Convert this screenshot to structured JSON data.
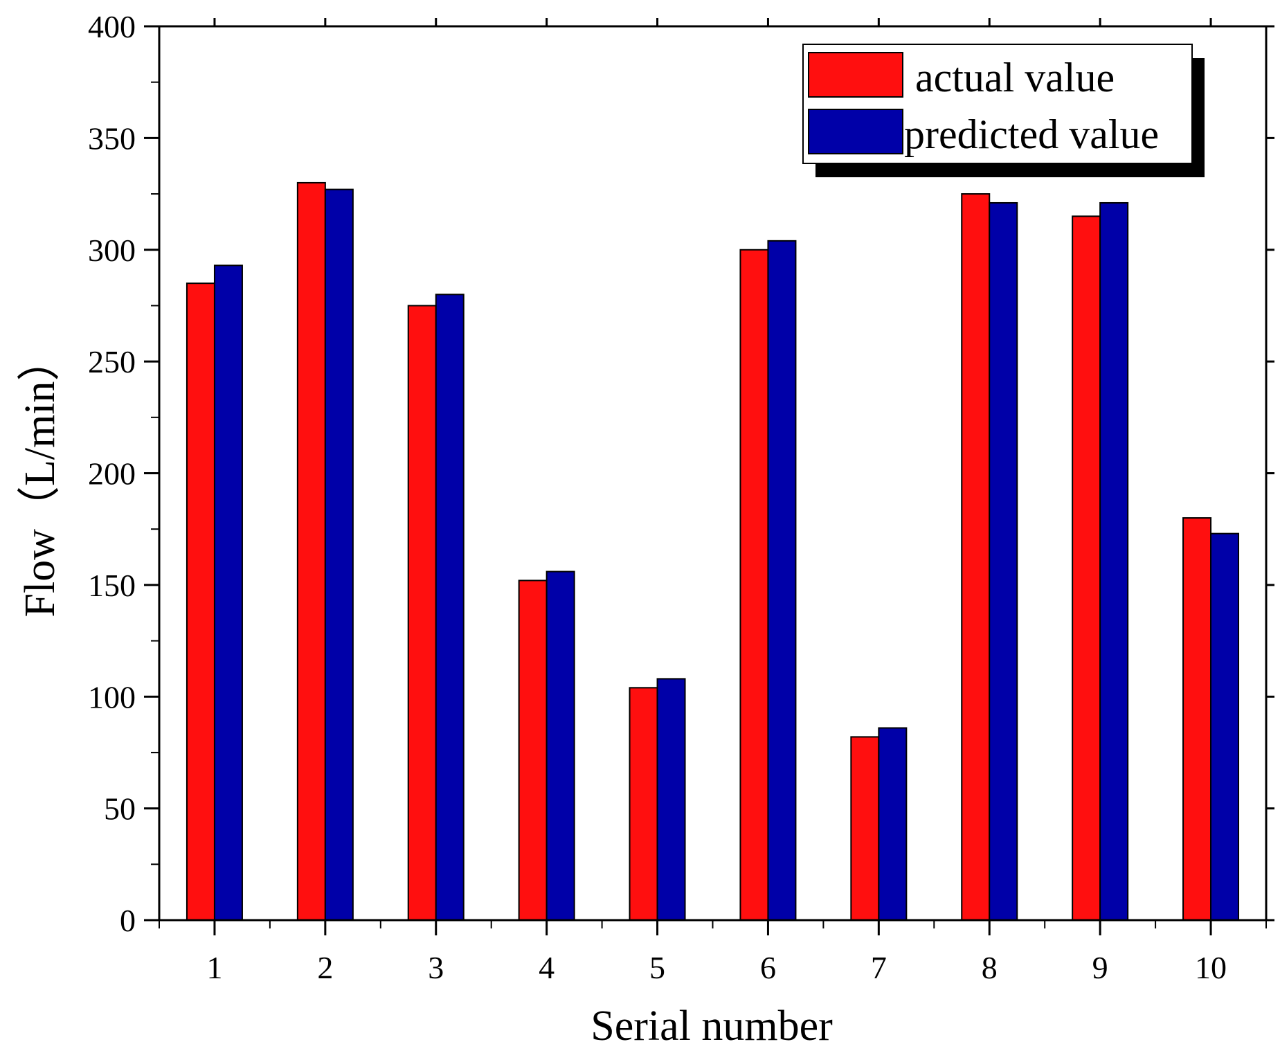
{
  "colors": {
    "actual": "#ff0f0f",
    "predicted": "#0000a8",
    "axis": "#000000"
  },
  "chart_data": {
    "type": "bar",
    "categories": [
      "1",
      "2",
      "3",
      "4",
      "5",
      "6",
      "7",
      "8",
      "9",
      "10"
    ],
    "series": [
      {
        "name": "actual value",
        "values": [
          285,
          330,
          275,
          152,
          104,
          300,
          82,
          325,
          315,
          180
        ]
      },
      {
        "name": "predicted value",
        "values": [
          293,
          327,
          280,
          156,
          108,
          304,
          86,
          321,
          321,
          173
        ]
      }
    ],
    "title": "",
    "xlabel": "Serial number",
    "ylabel": "Flow（L/min）",
    "ylim": [
      0,
      400
    ],
    "yticks": [
      "0",
      "50",
      "100",
      "150",
      "200",
      "250",
      "300",
      "350",
      "400"
    ],
    "legend_position": "top-right",
    "grid": false
  }
}
